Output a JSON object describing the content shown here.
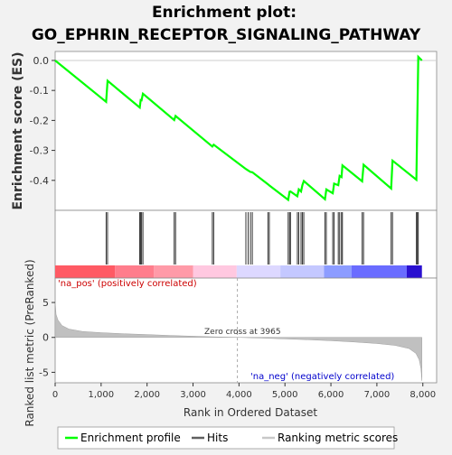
{
  "chart_data": {
    "type": "line",
    "title_line1": "Enrichment plot:",
    "title_line2": "GO_EPHRIN_RECEPTOR_SIGNALING_PATHWAY",
    "es_panel": {
      "ylabel": "Enrichment score (ES)",
      "ylim": [
        -0.5,
        0.03
      ],
      "yticks": [
        0.0,
        -0.1,
        -0.2,
        -0.3,
        -0.4
      ],
      "ytick_labels": [
        "0.0",
        "-0.1",
        "-0.2",
        "-0.3",
        "-0.4"
      ],
      "line_color": "#00ff00",
      "points": [
        [
          0,
          0.0
        ],
        [
          1110,
          -0.138
        ],
        [
          1140,
          -0.068
        ],
        [
          1840,
          -0.157
        ],
        [
          1860,
          -0.132
        ],
        [
          1880,
          -0.133
        ],
        [
          1910,
          -0.111
        ],
        [
          2590,
          -0.199
        ],
        [
          2620,
          -0.185
        ],
        [
          3420,
          -0.287
        ],
        [
          3450,
          -0.281
        ],
        [
          4150,
          -0.362
        ],
        [
          4200,
          -0.367
        ],
        [
          4250,
          -0.372
        ],
        [
          4290,
          -0.373
        ],
        [
          4630,
          -0.413
        ],
        [
          4660,
          -0.417
        ],
        [
          5070,
          -0.465
        ],
        [
          5100,
          -0.438
        ],
        [
          5120,
          -0.437
        ],
        [
          5270,
          -0.453
        ],
        [
          5300,
          -0.43
        ],
        [
          5350,
          -0.437
        ],
        [
          5380,
          -0.416
        ],
        [
          5410,
          -0.402
        ],
        [
          5870,
          -0.463
        ],
        [
          5900,
          -0.43
        ],
        [
          6040,
          -0.443
        ],
        [
          6070,
          -0.411
        ],
        [
          6160,
          -0.416
        ],
        [
          6190,
          -0.385
        ],
        [
          6230,
          -0.389
        ],
        [
          6250,
          -0.35
        ],
        [
          6680,
          -0.403
        ],
        [
          6710,
          -0.348
        ],
        [
          7310,
          -0.427
        ],
        [
          7340,
          -0.334
        ],
        [
          7860,
          -0.398
        ],
        [
          7880,
          -0.2
        ],
        [
          7900,
          0.012
        ],
        [
          7980,
          0.0
        ]
      ]
    },
    "hits": [
      1110,
      1140,
      1840,
      1860,
      1880,
      1910,
      2590,
      2620,
      3420,
      3450,
      4150,
      4200,
      4250,
      4290,
      4630,
      4660,
      5070,
      5100,
      5120,
      5270,
      5300,
      5350,
      5380,
      5410,
      5870,
      5900,
      6040,
      6070,
      6160,
      6190,
      6230,
      6250,
      6680,
      6710,
      7310,
      7340,
      7860,
      7880,
      7900
    ],
    "color_bar": [
      {
        "start": 0,
        "end": 1300,
        "color": "#ff5a64"
      },
      {
        "start": 1300,
        "end": 2150,
        "color": "#ff7d8c"
      },
      {
        "start": 2150,
        "end": 3000,
        "color": "#ff9aa8"
      },
      {
        "start": 3000,
        "end": 3950,
        "color": "#ffc8e0"
      },
      {
        "start": 3950,
        "end": 4900,
        "color": "#ddd8ff"
      },
      {
        "start": 4900,
        "end": 5850,
        "color": "#c4c8ff"
      },
      {
        "start": 5850,
        "end": 6450,
        "color": "#8c9cff"
      },
      {
        "start": 6450,
        "end": 7650,
        "color": "#6a6cff"
      },
      {
        "start": 7650,
        "end": 7980,
        "color": "#2a10d0"
      }
    ],
    "metric_panel": {
      "ylabel": "Ranked list metric (PreRanked)",
      "ylim": [
        -6.5,
        8.5
      ],
      "yticks": [
        5,
        0,
        -5
      ],
      "ytick_labels": [
        "5",
        "0",
        "-5"
      ],
      "curve": [
        [
          0,
          5.2
        ],
        [
          20,
          3.3
        ],
        [
          60,
          2.5
        ],
        [
          150,
          1.7
        ],
        [
          300,
          1.2
        ],
        [
          600,
          0.85
        ],
        [
          1000,
          0.68
        ],
        [
          1500,
          0.52
        ],
        [
          2000,
          0.4
        ],
        [
          2500,
          0.28
        ],
        [
          3000,
          0.17
        ],
        [
          3500,
          0.07
        ],
        [
          3965,
          0.0
        ],
        [
          4500,
          -0.1
        ],
        [
          5000,
          -0.22
        ],
        [
          5500,
          -0.33
        ],
        [
          6000,
          -0.48
        ],
        [
          6500,
          -0.65
        ],
        [
          7000,
          -0.87
        ],
        [
          7400,
          -1.15
        ],
        [
          7700,
          -1.6
        ],
        [
          7850,
          -2.3
        ],
        [
          7920,
          -3.2
        ],
        [
          7960,
          -4.5
        ],
        [
          7980,
          -6.2
        ]
      ],
      "pos_label": "'na_pos' (positively correlated)",
      "neg_label": "'na_neg' (negatively correlated)",
      "zero_cross_label": "Zero cross at 3965",
      "zero_cross": 3965
    },
    "xaxis": {
      "xlabel": "Rank in Ordered Dataset",
      "xlim": [
        0,
        8300
      ],
      "xticks": [
        0,
        1000,
        2000,
        3000,
        4000,
        5000,
        6000,
        7000,
        8000
      ],
      "xtick_labels": [
        "0",
        "1,000",
        "2,000",
        "3,000",
        "4,000",
        "5,000",
        "6,000",
        "7,000",
        "8,000"
      ]
    },
    "legend": {
      "placement": "bottom",
      "items": [
        {
          "label": "Enrichment profile",
          "color": "#00ff00",
          "kind": "line"
        },
        {
          "label": "Hits",
          "color": "#606060",
          "kind": "line"
        },
        {
          "label": "Ranking metric scores",
          "color": "#c8c8c8",
          "kind": "line"
        }
      ]
    }
  }
}
